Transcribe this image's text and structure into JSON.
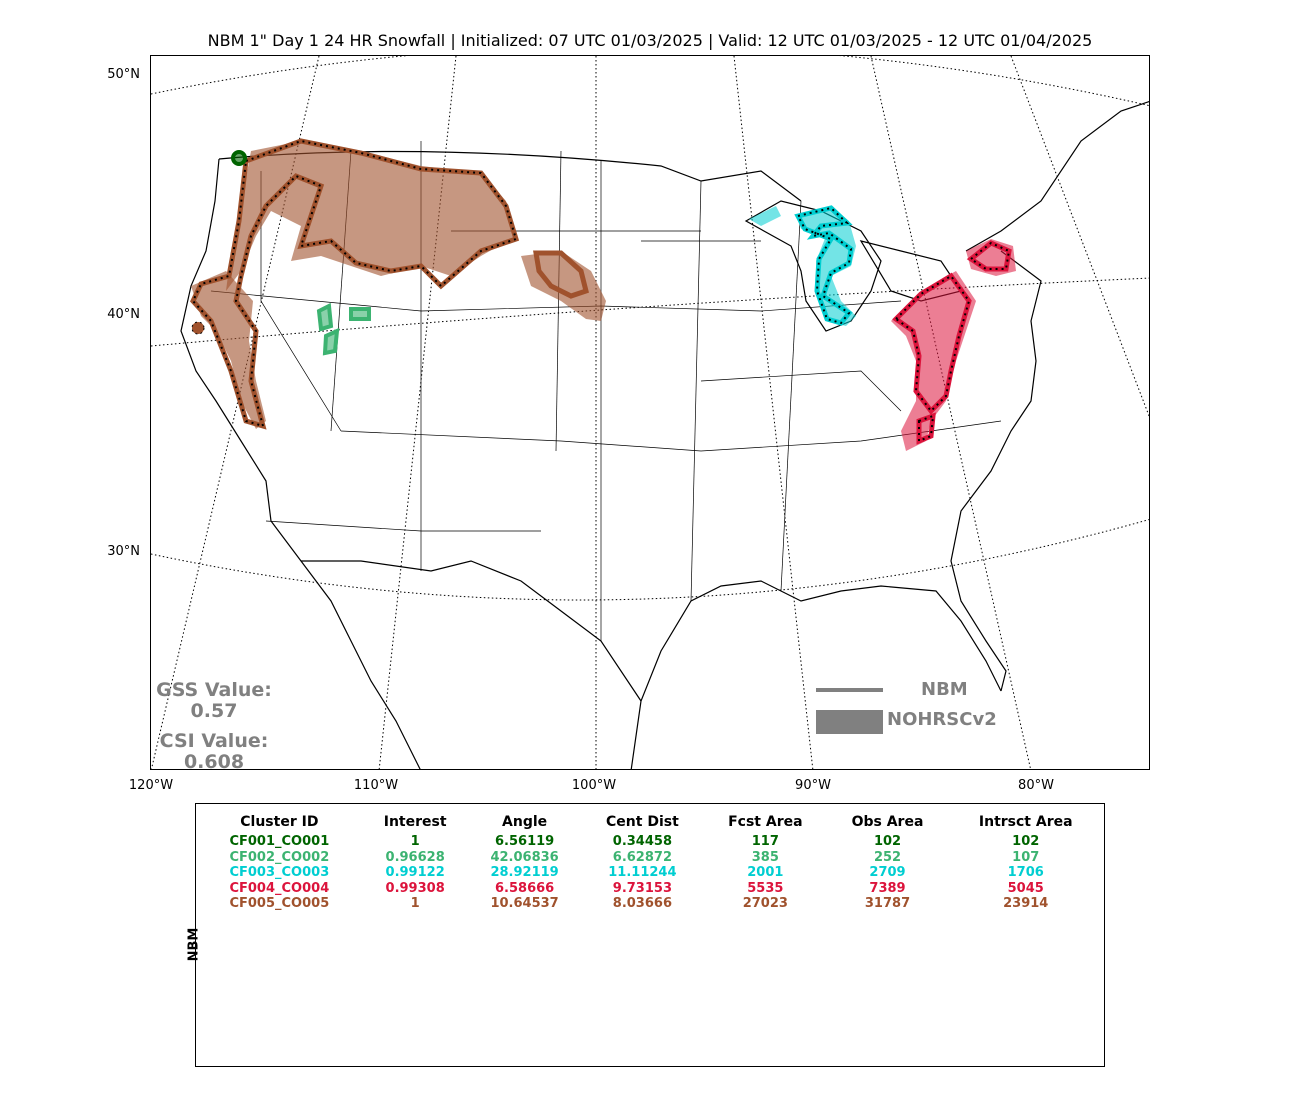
{
  "title": "NBM 1\" Day 1 24 HR Snowfall | Initialized: 07 UTC 01/03/2025 | Valid: 12 UTC 01/03/2025 - 12 UTC 01/04/2025",
  "lat_labels": [
    "50°N",
    "40°N",
    "30°N"
  ],
  "lon_labels": [
    "120°W",
    "110°W",
    "100°W",
    "90°W",
    "80°W"
  ],
  "scores": {
    "gss_label": "GSS Value:",
    "gss_value": "0.57",
    "csi_label": "CSI Value:",
    "csi_value": "0.608"
  },
  "legend": {
    "forecast_label": "NBM",
    "observed_label": "NOHRSCv2",
    "color": "#808080"
  },
  "table": {
    "row_label": "NBM",
    "headers": [
      "Cluster ID",
      "Interest",
      "Angle",
      "Cent Dist",
      "Fcst Area",
      "Obs Area",
      "Intrsct Area"
    ],
    "rows": [
      {
        "color": "#006400",
        "cells": [
          "CF001_CO001",
          "1",
          "6.56119",
          "0.34458",
          "117",
          "102",
          "102"
        ]
      },
      {
        "color": "#3cb371",
        "cells": [
          "CF002_CO002",
          "0.96628",
          "42.06836",
          "6.62872",
          "385",
          "252",
          "107"
        ]
      },
      {
        "color": "#00ced1",
        "cells": [
          "CF003_CO003",
          "0.99122",
          "28.92119",
          "11.11244",
          "2001",
          "2709",
          "1706"
        ]
      },
      {
        "color": "#dc143c",
        "cells": [
          "CF004_CO004",
          "0.99308",
          "6.58666",
          "9.73153",
          "5535",
          "7389",
          "5045"
        ]
      },
      {
        "color": "#a0522d",
        "cells": [
          "CF005_CO005",
          "1",
          "10.64537",
          "8.03666",
          "27023",
          "31787",
          "23914"
        ]
      }
    ]
  },
  "clusters": [
    {
      "id": "CF001_CO001",
      "color": "#006400"
    },
    {
      "id": "CF002_CO002",
      "color": "#3cb371"
    },
    {
      "id": "CF003_CO003",
      "color": "#00ced1"
    },
    {
      "id": "CF004_CO004",
      "color": "#dc143c"
    },
    {
      "id": "CF005_CO005",
      "color": "#a0522d"
    }
  ]
}
